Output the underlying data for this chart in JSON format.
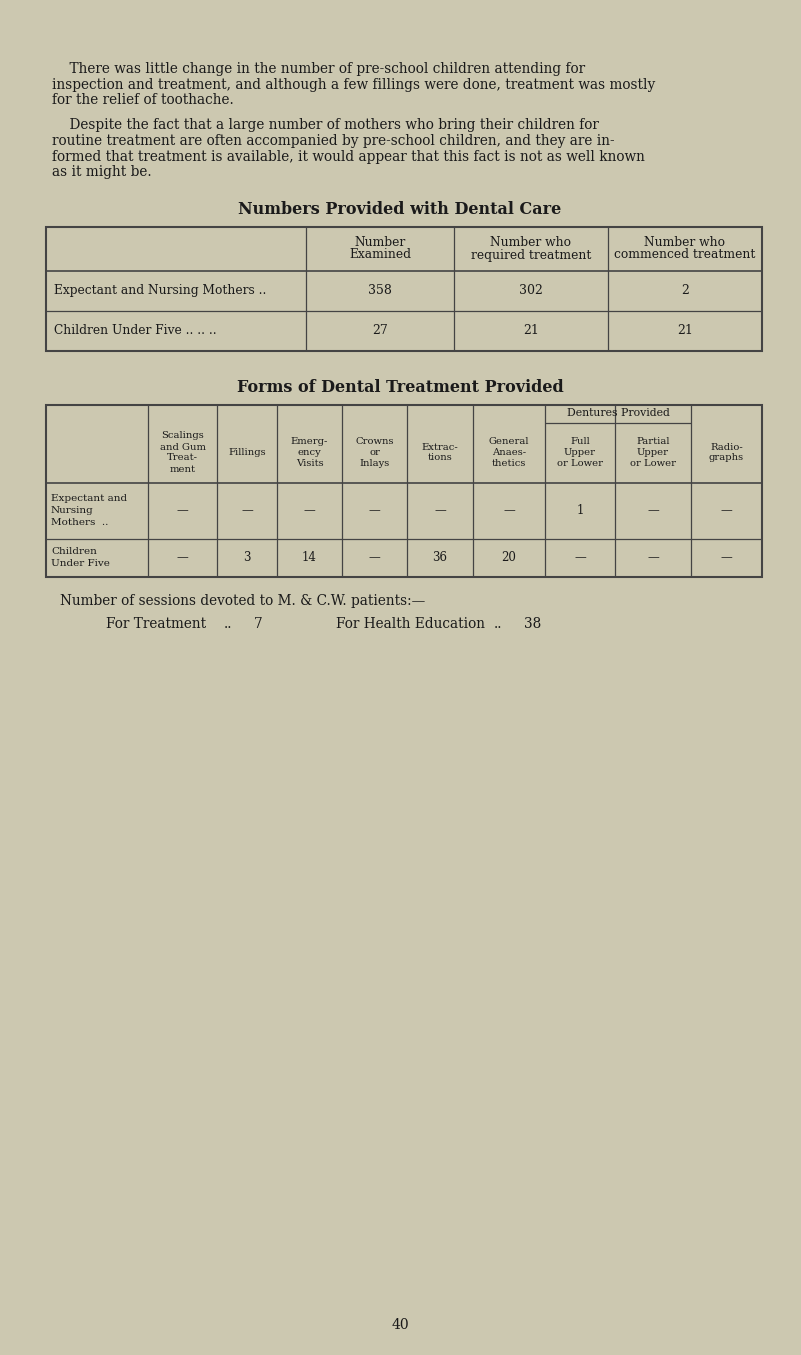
{
  "bg_color": "#ccc8b0",
  "text_color": "#1a1a1a",
  "page_number": "40",
  "p1_lines": [
    "    There was little change in the number of pre-school children attending for",
    "inspection and treatment, and although a few fillings were done, treatment was mostly",
    "for the relief of toothache."
  ],
  "p2_lines": [
    "    Despite the fact that a large number of mothers who bring their children for",
    "routine treatment are often accompanied by pre-school children, and they are in-",
    "formed that treatment is available, it would appear that this fact is not as well known",
    "as it might be."
  ],
  "table1_title": "Numbers Provided with Dental Care",
  "table1_col_headers": [
    [
      "Number",
      "Examined"
    ],
    [
      "Number who",
      "required treatment"
    ],
    [
      "Number who",
      "commenced treatment"
    ]
  ],
  "table1_rows": [
    {
      "label": "Expectant and Nursing Mothers",
      "dots": " ..",
      "values": [
        "358",
        "302",
        "2"
      ]
    },
    {
      "label": "Children Under Five",
      "dots": " .. .. ..",
      "values": [
        "27",
        "21",
        "21"
      ]
    }
  ],
  "table2_title": "Forms of Dental Treatment Provided",
  "table2_col_headers": [
    [
      "Scalings",
      "and Gum",
      "Treat-",
      "ment"
    ],
    [
      "Fillings"
    ],
    [
      "Emerg-",
      "ency",
      "Visits"
    ],
    [
      "Crowns",
      "or",
      "Inlays"
    ],
    [
      "Extrac-",
      "tions"
    ],
    [
      "General",
      "Anaes-",
      "thetics"
    ],
    [
      "Full",
      "Upper",
      "or Lower"
    ],
    [
      "Partial",
      "Upper",
      "or Lower"
    ],
    [
      "Radio-",
      "graphs"
    ]
  ],
  "table2_dentures_header": "Dentures Provided",
  "table2_rows": [
    {
      "label": [
        "Expectant and",
        "Nursing",
        "Mothers  .."
      ],
      "values": [
        "—",
        "—",
        "—",
        "—",
        "—",
        "—",
        "1",
        "—",
        "—"
      ]
    },
    {
      "label": [
        "Children",
        "Under Five"
      ],
      "values": [
        "—",
        "3",
        "14",
        "—",
        "36",
        "20",
        "—",
        "—",
        "—"
      ]
    }
  ],
  "sessions_line1": "Number of sessions devoted to M. & C.W. patients:—",
  "sessions_line2_left": "For Treatment",
  "sessions_line2_dots1": "..",
  "sessions_line2_val1": "7",
  "sessions_line2_right": "For Health Education",
  "sessions_line2_dots2": "..",
  "sessions_line2_val2": "38"
}
